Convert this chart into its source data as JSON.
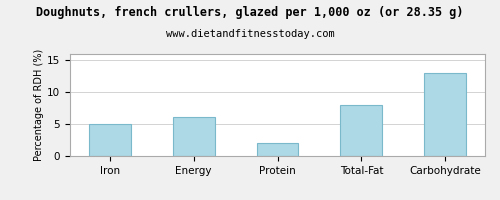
{
  "title": "Doughnuts, french crullers, glazed per 1,000 oz (or 28.35 g)",
  "subtitle": "www.dietandfitnesstoday.com",
  "categories": [
    "Iron",
    "Energy",
    "Protein",
    "Total-Fat",
    "Carbohydrate"
  ],
  "values": [
    5.0,
    6.1,
    2.1,
    8.0,
    13.0
  ],
  "bar_color": "#add8e6",
  "bar_edgecolor": "#7ab8cc",
  "ylabel": "Percentage of RDH (%)",
  "ylim": [
    0,
    16
  ],
  "yticks": [
    0,
    5,
    10,
    15
  ],
  "background_color": "#f0f0f0",
  "plot_bg_color": "#ffffff",
  "title_fontsize": 8.5,
  "subtitle_fontsize": 7.5,
  "label_fontsize": 7,
  "tick_fontsize": 7.5,
  "grid_color": "#cccccc",
  "bar_width": 0.5
}
